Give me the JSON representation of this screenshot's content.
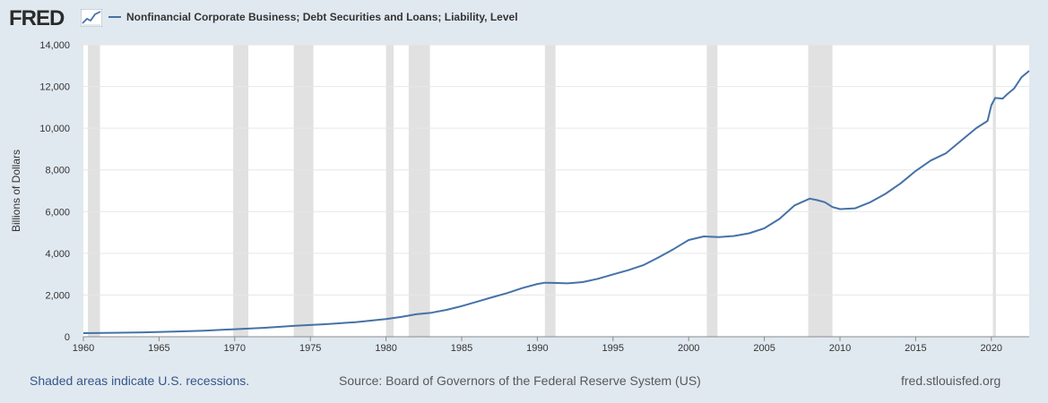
{
  "header": {
    "logo_text": "FRED",
    "logo_icon": "line-chart-icon",
    "series_title": "Nonfinancial Corporate Business; Debt Securities and Loans; Liability, Level"
  },
  "colors": {
    "background": "#e1e9f0",
    "plot_background": "#ffffff",
    "series_line": "#4572a7",
    "recession_shade": "#e1e1e1",
    "grid": "#e6e6e6"
  },
  "chart_data": {
    "type": "line",
    "title": "Nonfinancial Corporate Business; Debt Securities and Loans; Liability, Level",
    "xlabel": "",
    "ylabel": "Billions of Dollars",
    "xlim": [
      1960,
      2022.5
    ],
    "ylim": [
      0,
      14000
    ],
    "x_ticks": [
      "1960",
      "1965",
      "1970",
      "1975",
      "1980",
      "1985",
      "1990",
      "1995",
      "2000",
      "2005",
      "2010",
      "2015",
      "2020"
    ],
    "y_ticks": [
      "0",
      "2,000",
      "4,000",
      "6,000",
      "8,000",
      "10,000",
      "12,000",
      "14,000"
    ],
    "grid": true,
    "recessions": [
      [
        1960.3,
        1961.1
      ],
      [
        1969.9,
        1970.9
      ],
      [
        1973.9,
        1975.2
      ],
      [
        1980.0,
        1980.5
      ],
      [
        1981.5,
        1982.9
      ],
      [
        1990.5,
        1991.2
      ],
      [
        2001.2,
        2001.9
      ],
      [
        2007.9,
        2009.5
      ],
      [
        2020.1,
        2020.3
      ]
    ],
    "series": [
      {
        "x": [
          1960,
          1962,
          1964,
          1966,
          1968,
          1970,
          1972,
          1974,
          1976,
          1978,
          1980,
          1981,
          1982,
          1983,
          1984,
          1985,
          1986,
          1987,
          1988,
          1989,
          1990,
          1990.5,
          1991,
          1992,
          1993,
          1994,
          1995,
          1996,
          1997,
          1998,
          1999,
          2000,
          2001,
          2002,
          2003,
          2004,
          2005,
          2006,
          2007,
          2008,
          2008.5,
          2009,
          2009.5,
          2010,
          2011,
          2012,
          2013,
          2014,
          2015,
          2016,
          2017,
          2018,
          2019,
          2019.75,
          2020,
          2020.25,
          2020.75,
          2021,
          2021.5,
          2022,
          2022.5
        ],
        "values": [
          170,
          190,
          210,
          250,
          290,
          360,
          430,
          530,
          600,
          700,
          850,
          950,
          1080,
          1150,
          1290,
          1470,
          1680,
          1890,
          2090,
          2330,
          2530,
          2590,
          2580,
          2560,
          2620,
          2780,
          2990,
          3190,
          3430,
          3800,
          4200,
          4640,
          4810,
          4780,
          4830,
          4960,
          5200,
          5650,
          6300,
          6620,
          6550,
          6450,
          6220,
          6120,
          6160,
          6450,
          6850,
          7350,
          7950,
          8450,
          8800,
          9400,
          10000,
          10350,
          11100,
          11450,
          11420,
          11600,
          11900,
          12450,
          12750
        ]
      }
    ]
  },
  "footer": {
    "recession_note": "Shaded areas indicate U.S. recessions.",
    "source": "Source: Board of Governors of the Federal Reserve System (US)",
    "site": "fred.stlouisfed.org"
  }
}
